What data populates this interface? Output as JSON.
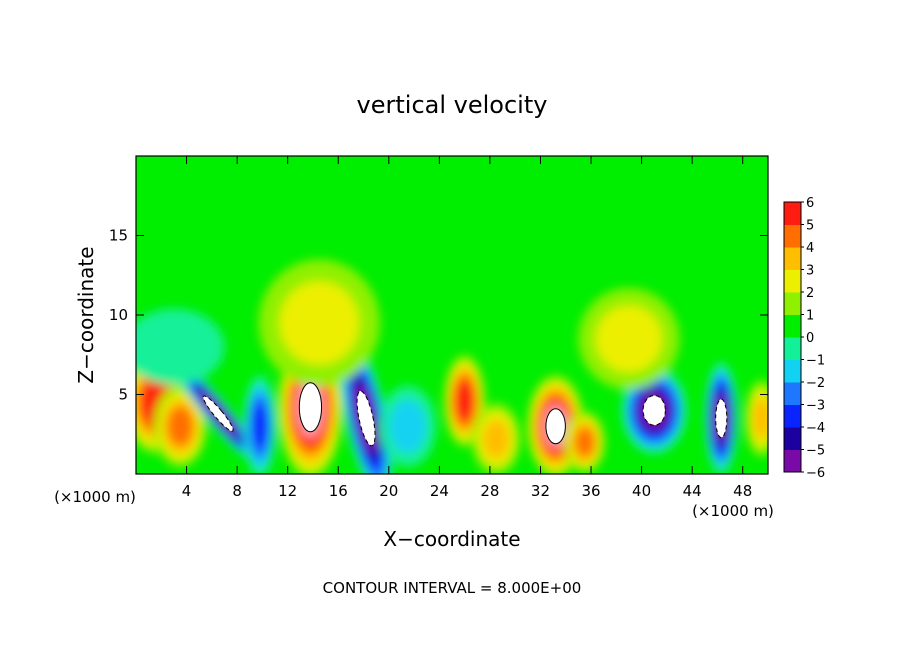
{
  "chart_data": {
    "type": "heatmap",
    "title": "vertical velocity",
    "xlabel": "X−coordinate",
    "ylabel": "Z−coordinate",
    "x_unit": "(×1000 m)",
    "z_unit": "(×1000 m)",
    "footer": "CONTOUR INTERVAL = 8.000E+00",
    "xlim": [
      0,
      50
    ],
    "ylim": [
      0,
      20
    ],
    "x_ticks": [
      4,
      8,
      12,
      16,
      20,
      24,
      28,
      32,
      36,
      40,
      44,
      48
    ],
    "y_ticks": [
      5,
      10,
      15
    ],
    "colorbar": {
      "range": [
        -6,
        6
      ],
      "ticks": [
        6,
        5,
        4,
        3,
        2,
        1,
        0,
        -1,
        -2,
        -3,
        -4,
        -5,
        -6
      ],
      "tick_labels": [
        "6",
        "5",
        "4",
        "3",
        "2",
        "1",
        "0",
        "−1",
        "−2",
        "−3",
        "−4",
        "−5",
        "−6"
      ],
      "colors": [
        "#7a0aa8",
        "#1d00a0",
        "#0a24ff",
        "#1e78ff",
        "#12d2f2",
        "#12f098",
        "#00ee00",
        "#8ff000",
        "#ecef00",
        "#ffbe00",
        "#ff6e00",
        "#ff1c10",
        "#ffa0a8"
      ]
    },
    "features": [
      {
        "x": 1.5,
        "z": 4.5,
        "value": 5,
        "sx": 1.5,
        "sz": 2.0,
        "angle": 0
      },
      {
        "x": 3.5,
        "z": 3.0,
        "value": 4,
        "sx": 1.3,
        "sz": 1.6,
        "angle": 0
      },
      {
        "x": 6.5,
        "z": 3.8,
        "value": -6,
        "sx": 0.6,
        "sz": 2.6,
        "angle": 40
      },
      {
        "x": 9.8,
        "z": 3.0,
        "value": -4,
        "sx": 0.8,
        "sz": 2.0,
        "angle": 0
      },
      {
        "x": 13.8,
        "z": 4.2,
        "value": 6,
        "sx": 1.6,
        "sz": 2.8,
        "angle": 0
      },
      {
        "x": 18.2,
        "z": 3.5,
        "value": -6,
        "sx": 1.0,
        "sz": 3.2,
        "angle": 12
      },
      {
        "x": 21.5,
        "z": 3.0,
        "value": -2,
        "sx": 1.4,
        "sz": 1.6,
        "angle": 0
      },
      {
        "x": 26.0,
        "z": 4.6,
        "value": 5,
        "sx": 1.0,
        "sz": 1.8,
        "angle": 0
      },
      {
        "x": 28.5,
        "z": 2.2,
        "value": 3,
        "sx": 1.2,
        "sz": 1.4,
        "angle": 0
      },
      {
        "x": 33.2,
        "z": 3.0,
        "value": 6,
        "sx": 1.4,
        "sz": 2.0,
        "angle": 0
      },
      {
        "x": 35.5,
        "z": 2.0,
        "value": 4,
        "sx": 1.0,
        "sz": 1.2,
        "angle": 0
      },
      {
        "x": 41.0,
        "z": 4.0,
        "value": -6,
        "sx": 1.6,
        "sz": 1.7,
        "angle": 0
      },
      {
        "x": 46.3,
        "z": 3.5,
        "value": -6,
        "sx": 0.8,
        "sz": 2.2,
        "angle": 0
      },
      {
        "x": 49.5,
        "z": 3.5,
        "value": 3,
        "sx": 0.8,
        "sz": 1.5,
        "angle": 0
      },
      {
        "x": 14.5,
        "z": 9.5,
        "value": 1.5,
        "sx": 3.0,
        "sz": 2.5,
        "angle": 0
      },
      {
        "x": 39.0,
        "z": 8.5,
        "value": 1.5,
        "sx": 2.5,
        "sz": 2.0,
        "angle": 0
      },
      {
        "x": 3.0,
        "z": 8.0,
        "value": -1,
        "sx": 2.5,
        "sz": 1.5,
        "angle": 0
      }
    ]
  }
}
